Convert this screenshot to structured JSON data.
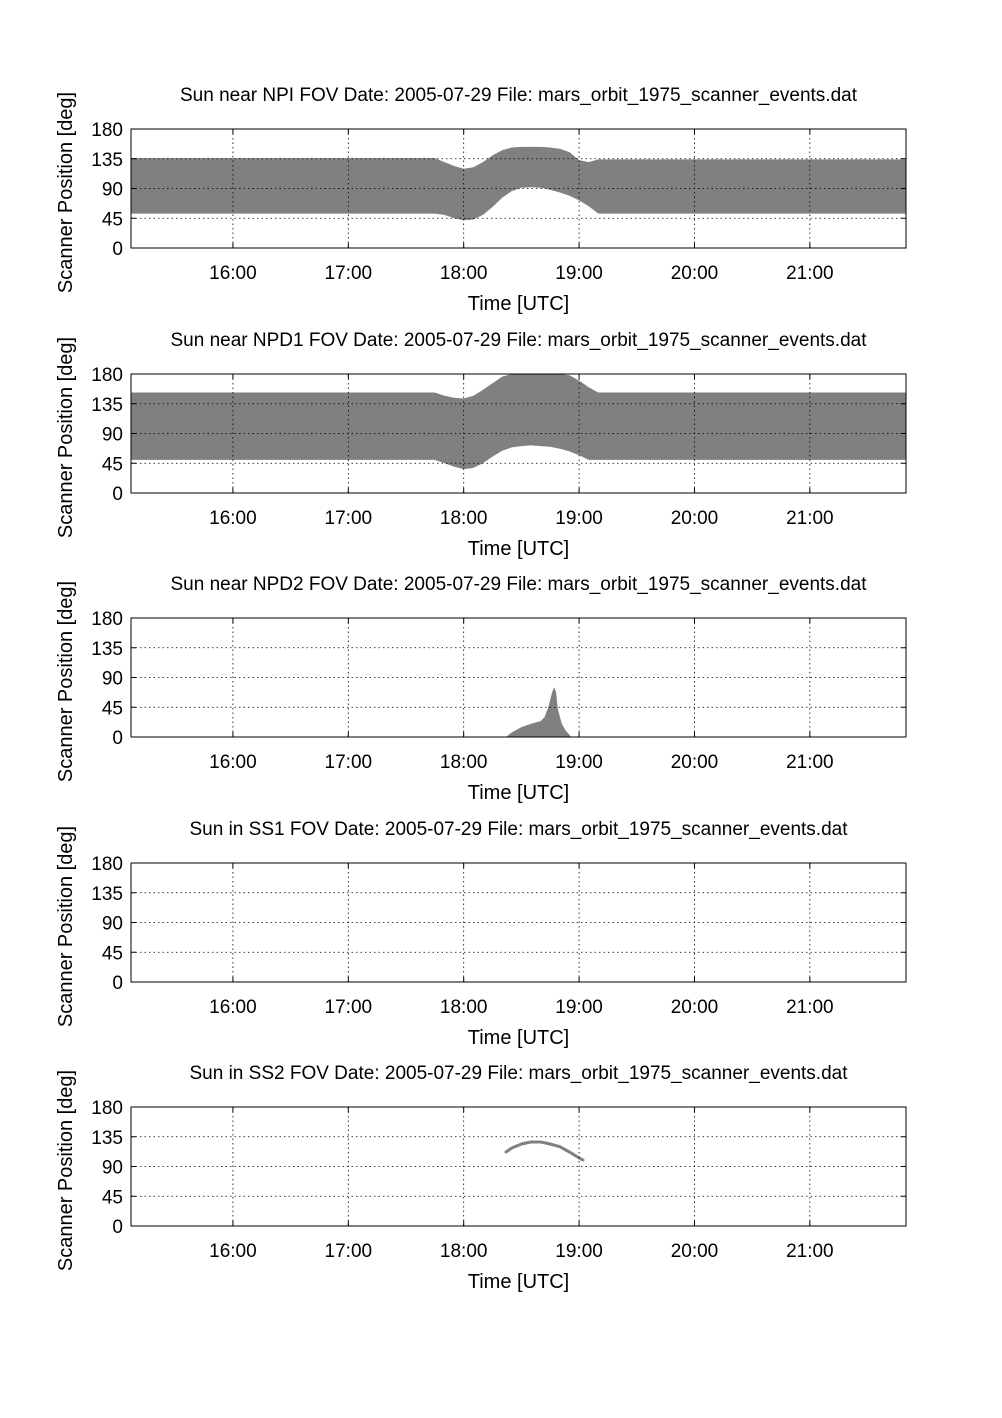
{
  "figure": {
    "background": "#ffffff",
    "fill_color": "#808080",
    "grid_color": "#000000"
  },
  "chart_data": [
    {
      "type": "area",
      "title": "Sun near NPI FOV   Date: 2005-07-29   File: mars_orbit_1975_scanner_events.dat",
      "xlabel": "Time [UTC]",
      "ylabel": "Scanner Position [deg]",
      "xlim": [
        "15:07",
        "21:50"
      ],
      "ylim": [
        0,
        180
      ],
      "xticks": [
        "16:00",
        "17:00",
        "18:00",
        "19:00",
        "20:00",
        "21:00"
      ],
      "yticks": [
        0,
        45,
        90,
        135,
        180
      ],
      "grid": true,
      "x": [
        "15:07",
        "17:45",
        "17:50",
        "17:55",
        "18:00",
        "18:05",
        "18:10",
        "18:15",
        "18:20",
        "18:25",
        "18:30",
        "18:35",
        "18:40",
        "18:45",
        "18:50",
        "18:55",
        "19:00",
        "19:05",
        "19:10",
        "21:50"
      ],
      "lower": [
        52,
        52,
        50,
        45,
        42,
        43,
        50,
        62,
        76,
        86,
        91,
        92,
        91,
        88,
        84,
        79,
        72,
        63,
        52,
        52
      ],
      "upper": [
        136,
        136,
        130,
        124,
        120,
        122,
        130,
        140,
        148,
        152,
        153,
        153,
        153,
        152,
        150,
        145,
        133,
        130,
        134,
        134
      ]
    },
    {
      "type": "area",
      "title": "Sun near NPD1 FOV   Date: 2005-07-29   File: mars_orbit_1975_scanner_events.dat",
      "xlabel": "Time [UTC]",
      "ylabel": "Scanner Position [deg]",
      "xlim": [
        "15:07",
        "21:50"
      ],
      "ylim": [
        0,
        180
      ],
      "xticks": [
        "16:00",
        "17:00",
        "18:00",
        "19:00",
        "20:00",
        "21:00"
      ],
      "yticks": [
        0,
        45,
        90,
        135,
        180
      ],
      "grid": true,
      "x": [
        "15:07",
        "17:45",
        "17:50",
        "17:55",
        "18:00",
        "18:05",
        "18:10",
        "18:15",
        "18:20",
        "18:25",
        "18:30",
        "18:35",
        "18:40",
        "18:45",
        "18:50",
        "18:55",
        "19:00",
        "19:05",
        "19:10",
        "21:50"
      ],
      "lower": [
        50,
        50,
        45,
        40,
        36,
        38,
        45,
        55,
        64,
        69,
        71,
        72,
        71,
        70,
        67,
        63,
        57,
        50,
        50,
        50
      ],
      "upper": [
        152,
        152,
        147,
        144,
        143,
        147,
        156,
        166,
        176,
        180,
        180,
        180,
        180,
        180,
        180,
        178,
        170,
        160,
        152,
        152
      ]
    },
    {
      "type": "area",
      "title": "Sun near NPD2 FOV   Date: 2005-07-29   File: mars_orbit_1975_scanner_events.dat",
      "xlabel": "Time [UTC]",
      "ylabel": "Scanner Position [deg]",
      "xlim": [
        "15:07",
        "21:50"
      ],
      "ylim": [
        0,
        180
      ],
      "xticks": [
        "16:00",
        "17:00",
        "18:00",
        "19:00",
        "20:00",
        "21:00"
      ],
      "yticks": [
        0,
        45,
        90,
        135,
        180
      ],
      "grid": true,
      "x": [
        "18:22",
        "18:25",
        "18:30",
        "18:35",
        "18:40",
        "18:42",
        "18:44",
        "18:46",
        "18:47",
        "18:48",
        "18:49",
        "18:51",
        "18:53",
        "18:56"
      ],
      "lower": [
        0,
        0,
        0,
        0,
        0,
        0,
        0,
        0,
        0,
        0,
        0,
        0,
        0,
        0
      ],
      "upper": [
        0,
        7,
        15,
        20,
        24,
        30,
        45,
        68,
        75,
        68,
        42,
        20,
        10,
        0
      ]
    },
    {
      "type": "area",
      "title": "Sun in SS1 FOV   Date: 2005-07-29   File: mars_orbit_1975_scanner_events.dat",
      "xlabel": "Time [UTC]",
      "ylabel": "Scanner Position [deg]",
      "xlim": [
        "15:07",
        "21:50"
      ],
      "ylim": [
        0,
        180
      ],
      "xticks": [
        "16:00",
        "17:00",
        "18:00",
        "19:00",
        "20:00",
        "21:00"
      ],
      "yticks": [
        0,
        45,
        90,
        135,
        180
      ],
      "grid": true,
      "x": [],
      "lower": [],
      "upper": []
    },
    {
      "type": "line",
      "title": "Sun in SS2 FOV   Date: 2005-07-29   File: mars_orbit_1975_scanner_events.dat",
      "xlabel": "Time [UTC]",
      "ylabel": "Scanner Position [deg]",
      "xlim": [
        "15:07",
        "21:50"
      ],
      "ylim": [
        0,
        180
      ],
      "xticks": [
        "16:00",
        "17:00",
        "18:00",
        "19:00",
        "20:00",
        "21:00"
      ],
      "yticks": [
        0,
        45,
        90,
        135,
        180
      ],
      "grid": true,
      "x": [
        "18:22",
        "18:25",
        "18:30",
        "18:35",
        "18:40",
        "18:45",
        "18:50",
        "18:55",
        "19:00",
        "19:02"
      ],
      "y": [
        112,
        118,
        124,
        127,
        127,
        124,
        120,
        112,
        103,
        100
      ]
    }
  ]
}
